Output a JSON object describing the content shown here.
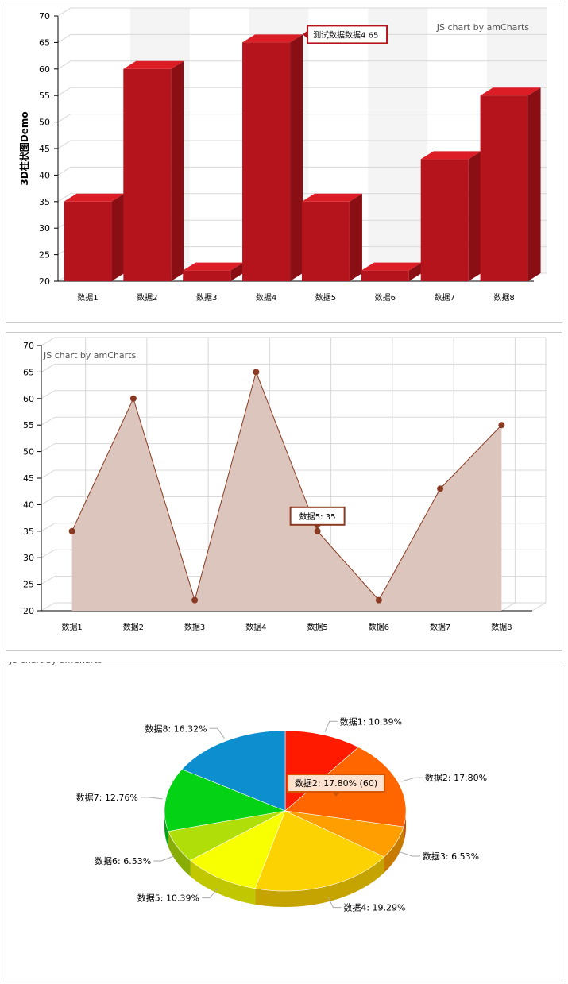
{
  "colors": {
    "bar_front": "#b5141c",
    "bar_side": "#8a0f15",
    "bar_top": "#dc1d25",
    "area_line": "#8a3a22",
    "area_fill": "#dcc5bc",
    "grid": "#d8d8d8",
    "band": "#f4f4f4",
    "pie_colors": [
      "#ff1a00",
      "#ff6600",
      "#ff9e01",
      "#fcd202",
      "#f8ff01",
      "#b0de09",
      "#04d215",
      "#0d8ecf"
    ]
  },
  "chart_data": [
    {
      "type": "bar",
      "style": "3d",
      "categories": [
        "数据1",
        "数据2",
        "数据3",
        "数据4",
        "数据5",
        "数据6",
        "数据7",
        "数据8"
      ],
      "values": [
        35,
        60,
        22,
        65,
        35,
        22,
        43,
        55
      ],
      "ylabel": "3D柱状图Demo",
      "ylim": [
        20,
        70
      ],
      "ytick_step": 5,
      "grid": true,
      "credit": "JS chart by amCharts",
      "balloon": {
        "category_index": 3,
        "text": "测试数据数据4 65"
      }
    },
    {
      "type": "area",
      "categories": [
        "数据1",
        "数据2",
        "数据3",
        "数据4",
        "数据5",
        "数据6",
        "数据7",
        "数据8"
      ],
      "values": [
        35,
        60,
        22,
        65,
        35,
        22,
        43,
        55
      ],
      "ylim": [
        20,
        70
      ],
      "ytick_step": 5,
      "grid": true,
      "credit": "JS chart by amCharts",
      "balloon": {
        "category_index": 4,
        "text": "数据5: 35"
      }
    },
    {
      "type": "pie",
      "style": "3d",
      "labels": [
        "数据1",
        "数据2",
        "数据3",
        "数据4",
        "数据5",
        "数据6",
        "数据7",
        "数据8"
      ],
      "values": [
        35,
        60,
        22,
        65,
        35,
        22,
        43,
        55
      ],
      "percent_labels": [
        "数据1: 10.39%",
        "数据2: 17.80%",
        "数据3: 6.53%",
        "数据4: 19.29%",
        "数据5: 10.39%",
        "数据6: 6.53%",
        "数据7: 12.76%",
        "数据8: 16.32%"
      ],
      "credit": "JS chart by amCharts",
      "balloon": {
        "slice_index": 1,
        "text": "数据2: 17.80% (60)"
      }
    }
  ]
}
